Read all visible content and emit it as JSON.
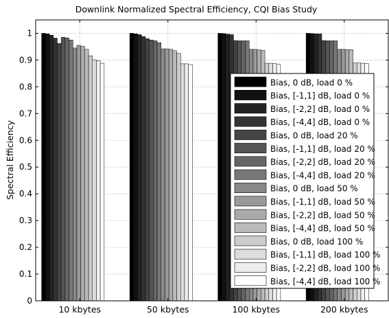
{
  "chart_data": {
    "type": "bar",
    "title": "Downlink Normalized Spectral Efficiency, CQI Bias Study",
    "xlabel": "",
    "ylabel": "Spectral Efficiency",
    "ylim": [
      0,
      1.05
    ],
    "yticks": [
      0,
      0.1,
      0.2,
      0.3,
      0.4,
      0.5,
      0.6,
      0.7,
      0.8,
      0.9,
      1
    ],
    "ytick_labels": [
      "0",
      "0.1",
      "0.2",
      "0.3",
      "0.4",
      "0.5",
      "0.6",
      "0.7",
      "0.8",
      "0.9",
      "1"
    ],
    "grid": true,
    "legend_position": "right",
    "categories": [
      "10 kbytes",
      "50 kbytes",
      "100 kbytes",
      "200 kbytes"
    ],
    "series": [
      {
        "name": "Bias, 0 dB, load 0 %",
        "color": "#000000",
        "values": [
          1.0,
          1.0,
          1.0,
          1.0
        ]
      },
      {
        "name": "Bias, [-1,1] dB, load 0 %",
        "color": "#111111",
        "values": [
          0.998,
          0.998,
          0.999,
          0.999
        ]
      },
      {
        "name": "Bias, [-2,2] dB, load 0 %",
        "color": "#222222",
        "values": [
          0.993,
          0.995,
          0.997,
          0.998
        ]
      },
      {
        "name": "Bias, [-4,4] dB, load 0 %",
        "color": "#333333",
        "values": [
          0.982,
          0.988,
          0.995,
          0.998
        ]
      },
      {
        "name": "Bias, 0 dB, load 20 %",
        "color": "#444444",
        "values": [
          0.962,
          0.98,
          0.973,
          0.973
        ]
      },
      {
        "name": "Bias, [-1,1] dB, load 20 %",
        "color": "#555555",
        "values": [
          0.985,
          0.975,
          0.972,
          0.972
        ]
      },
      {
        "name": "Bias, [-2,2] dB, load 20 %",
        "color": "#666666",
        "values": [
          0.983,
          0.972,
          0.972,
          0.972
        ]
      },
      {
        "name": "Bias, [-4,4] dB, load 20 %",
        "color": "#777777",
        "values": [
          0.975,
          0.965,
          0.972,
          0.972
        ]
      },
      {
        "name": "Bias, 0 dB, load 50 %",
        "color": "#888888",
        "values": [
          0.945,
          0.942,
          0.94,
          0.94
        ]
      },
      {
        "name": "Bias, [-1,1] dB, load 50 %",
        "color": "#999999",
        "values": [
          0.955,
          0.942,
          0.94,
          0.94
        ]
      },
      {
        "name": "Bias, [-2,2] dB, load 50 %",
        "color": "#aaaaaa",
        "values": [
          0.951,
          0.94,
          0.938,
          0.939
        ]
      },
      {
        "name": "Bias, [-4,4] dB, load 50 %",
        "color": "#bbbbbb",
        "values": [
          0.94,
          0.935,
          0.936,
          0.939
        ]
      },
      {
        "name": "Bias, 0 dB, load 100 %",
        "color": "#cccccc",
        "values": [
          0.916,
          0.925,
          0.888,
          0.889
        ]
      },
      {
        "name": "Bias, [-1,1] dB, load 100 %",
        "color": "#dddddd",
        "values": [
          0.901,
          0.886,
          0.888,
          0.889
        ]
      },
      {
        "name": "Bias, [-2,2] dB, load 100 %",
        "color": "#eeeeee",
        "values": [
          0.897,
          0.886,
          0.887,
          0.888
        ]
      },
      {
        "name": "Bias, [-4,4] dB, load 100 %",
        "color": "#ffffff",
        "values": [
          0.888,
          0.883,
          0.885,
          0.887
        ]
      }
    ],
    "extra_bars_10kbytes_tail": [
      0.898,
      0.866
    ]
  }
}
